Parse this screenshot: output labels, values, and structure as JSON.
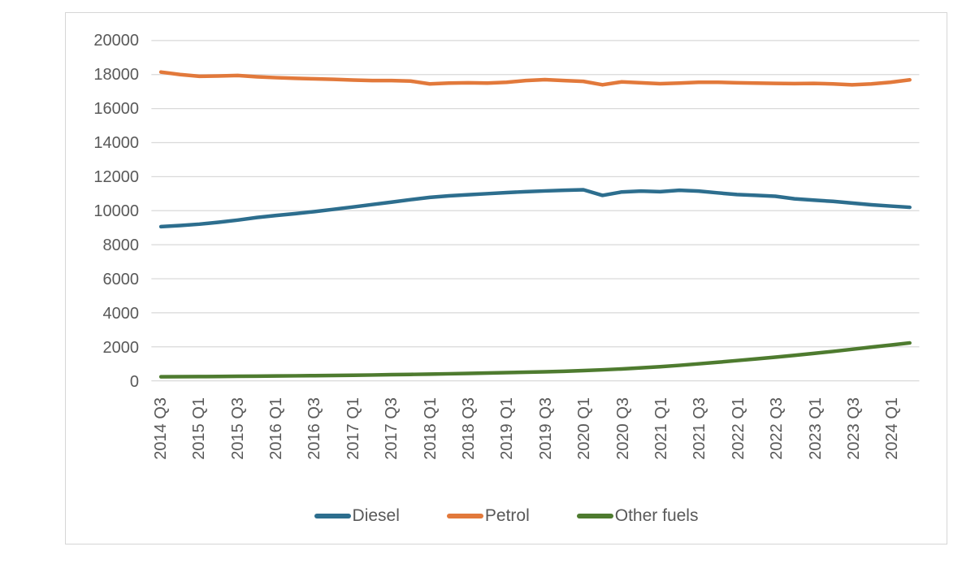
{
  "chart_data": {
    "type": "line",
    "title": "",
    "xlabel": "",
    "ylabel": "",
    "x": [
      "2014 Q3",
      "2014 Q4",
      "2015 Q1",
      "2015 Q2",
      "2015 Q3",
      "2015 Q4",
      "2016 Q1",
      "2016 Q2",
      "2016 Q3",
      "2016 Q4",
      "2017 Q1",
      "2017 Q2",
      "2017 Q3",
      "2017 Q4",
      "2018 Q1",
      "2018 Q2",
      "2018 Q3",
      "2018 Q4",
      "2019 Q1",
      "2019 Q2",
      "2019 Q3",
      "2019 Q4",
      "2020 Q1",
      "2020 Q2",
      "2020 Q3",
      "2020 Q4",
      "2021 Q1",
      "2021 Q2",
      "2021 Q3",
      "2021 Q4",
      "2022 Q1",
      "2022 Q2",
      "2022 Q3",
      "2022 Q4",
      "2023 Q1",
      "2023 Q2",
      "2023 Q3",
      "2023 Q4",
      "2024 Q1",
      "2024 Q2"
    ],
    "x_tick_labels_shown": [
      "2014 Q3",
      "2015 Q1",
      "2015 Q3",
      "2016 Q1",
      "2016 Q3",
      "2017 Q1",
      "2017 Q3",
      "2018 Q1",
      "2018 Q3",
      "2019 Q1",
      "2019 Q3",
      "2020 Q1",
      "2020 Q3",
      "2021 Q1",
      "2021 Q3",
      "2022 Q1",
      "2022 Q3",
      "2023 Q1",
      "2023 Q3",
      "2024 Q1"
    ],
    "x_tick_every": 2,
    "series": [
      {
        "name": "Diesel",
        "color": "#2d6e8e",
        "values": [
          9060,
          9130,
          9210,
          9320,
          9450,
          9600,
          9720,
          9830,
          9950,
          10080,
          10220,
          10360,
          10500,
          10650,
          10780,
          10870,
          10940,
          11000,
          11060,
          11120,
          11160,
          11200,
          11230,
          10900,
          11100,
          11150,
          11120,
          11200,
          11150,
          11050,
          10950,
          10900,
          10850,
          10700,
          10620,
          10550,
          10450,
          10350,
          10270,
          10200
        ]
      },
      {
        "name": "Petrol",
        "color": "#e2793b",
        "values": [
          18150,
          18000,
          17900,
          17920,
          17950,
          17870,
          17820,
          17780,
          17750,
          17720,
          17680,
          17650,
          17650,
          17620,
          17450,
          17500,
          17520,
          17500,
          17550,
          17650,
          17700,
          17650,
          17600,
          17400,
          17570,
          17520,
          17460,
          17500,
          17550,
          17550,
          17520,
          17500,
          17480,
          17470,
          17480,
          17450,
          17400,
          17450,
          17550,
          17690
        ]
      },
      {
        "name": "Other fuels",
        "color": "#4e7b2f",
        "values": [
          240,
          245,
          250,
          255,
          265,
          275,
          285,
          295,
          305,
          315,
          330,
          345,
          360,
          375,
          395,
          415,
          435,
          455,
          480,
          505,
          530,
          560,
          600,
          650,
          700,
          760,
          830,
          910,
          1000,
          1090,
          1190,
          1290,
          1390,
          1500,
          1610,
          1730,
          1850,
          1980,
          2100,
          2230
        ]
      }
    ],
    "ylim": [
      0,
      20000
    ],
    "y_ticks": [
      0,
      2000,
      4000,
      6000,
      8000,
      10000,
      12000,
      14000,
      16000,
      18000,
      20000
    ],
    "grid": "horizontal",
    "grid_color": "#d9d9d9",
    "axis_text_color": "#595959",
    "legend_position": "bottom"
  }
}
